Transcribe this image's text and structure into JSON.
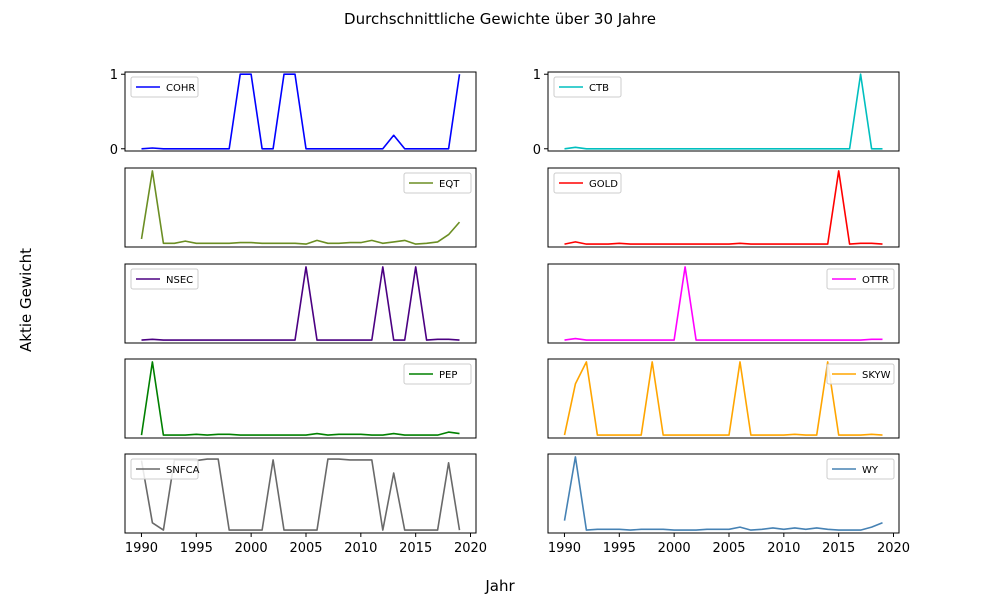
{
  "figure": {
    "title": "Durchschnittliche Gewichte über 30 Jahre",
    "xlabel": "Jahr",
    "ylabel": "Aktie Gewicht"
  },
  "chart_data": [
    {
      "type": "line",
      "series": [
        {
          "name": "COHR",
          "color": "#0000ff",
          "values": [
            0,
            0.01,
            0,
            0,
            0,
            0,
            0,
            0,
            0,
            1,
            1,
            0,
            0,
            1,
            1,
            0,
            0,
            0,
            0,
            0,
            0,
            0,
            0,
            0.18,
            0,
            0,
            0,
            0,
            0,
            1
          ]
        }
      ],
      "x_start": 1990,
      "x_end": 2019,
      "xlim": [
        1988.5,
        2020.5
      ],
      "ylim": [
        -0.03,
        1.03
      ],
      "yticks": [
        0,
        1
      ],
      "show_xticks": false,
      "legend": "top-left"
    },
    {
      "type": "line",
      "series": [
        {
          "name": "CTB",
          "color": "#00bfbf",
          "values": [
            0,
            0.02,
            0,
            0,
            0,
            0,
            0,
            0,
            0,
            0,
            0,
            0,
            0,
            0,
            0,
            0,
            0,
            0,
            0,
            0,
            0,
            0,
            0,
            0,
            0,
            0,
            0,
            1,
            0,
            0
          ]
        }
      ],
      "x_start": 1990,
      "x_end": 2019,
      "xlim": [
        1988.5,
        2020.5
      ],
      "ylim": [
        -0.03,
        1.03
      ],
      "yticks": [
        0,
        1
      ],
      "show_xticks": false,
      "legend": "top-left"
    },
    {
      "type": "line",
      "series": [
        {
          "name": "EQT",
          "color": "#6b8e23",
          "values": [
            0.07,
            1,
            0.01,
            0.01,
            0.04,
            0.01,
            0.01,
            0.01,
            0.01,
            0.02,
            0.02,
            0.01,
            0.01,
            0.01,
            0.01,
            0,
            0.05,
            0.01,
            0.01,
            0.02,
            0.02,
            0.05,
            0.01,
            0.03,
            0.05,
            0,
            0.01,
            0.03,
            0.13,
            0.3
          ]
        }
      ],
      "x_start": 1990,
      "x_end": 2019,
      "xlim": [
        1988.5,
        2020.5
      ],
      "ylim": [
        -0.04,
        1.04
      ],
      "yticks": [],
      "show_xticks": false,
      "legend": "top-right"
    },
    {
      "type": "line",
      "series": [
        {
          "name": "GOLD",
          "color": "#ff0000",
          "values": [
            0,
            0.03,
            0,
            0,
            0,
            0.01,
            0,
            0,
            0,
            0,
            0,
            0,
            0,
            0,
            0,
            0,
            0.01,
            0,
            0,
            0,
            0,
            0,
            0,
            0,
            0,
            1,
            0,
            0.01,
            0.01,
            0
          ]
        }
      ],
      "x_start": 1990,
      "x_end": 2019,
      "xlim": [
        1988.5,
        2020.5
      ],
      "ylim": [
        -0.04,
        1.04
      ],
      "yticks": [],
      "show_xticks": false,
      "legend": "top-left"
    },
    {
      "type": "line",
      "series": [
        {
          "name": "NSEC",
          "color": "#4b0082",
          "values": [
            0,
            0.01,
            0,
            0,
            0,
            0,
            0,
            0,
            0,
            0,
            0,
            0,
            0,
            0,
            0,
            1,
            0,
            0,
            0,
            0,
            0,
            0,
            1,
            0,
            0,
            1,
            0,
            0.01,
            0.01,
            0
          ]
        }
      ],
      "x_start": 1990,
      "x_end": 2019,
      "xlim": [
        1988.5,
        2020.5
      ],
      "ylim": [
        -0.04,
        1.04
      ],
      "yticks": [],
      "show_xticks": false,
      "legend": "top-left"
    },
    {
      "type": "line",
      "series": [
        {
          "name": "OTTR",
          "color": "#ff00ff",
          "values": [
            0,
            0.02,
            0,
            0,
            0,
            0,
            0,
            0,
            0,
            0,
            0,
            1,
            0,
            0,
            0,
            0,
            0,
            0,
            0,
            0,
            0,
            0,
            0,
            0,
            0,
            0,
            0,
            0,
            0.01,
            0.01
          ]
        }
      ],
      "x_start": 1990,
      "x_end": 2019,
      "xlim": [
        1988.5,
        2020.5
      ],
      "ylim": [
        -0.04,
        1.04
      ],
      "yticks": [],
      "show_xticks": false,
      "legend": "top-right"
    },
    {
      "type": "line",
      "series": [
        {
          "name": "PEP",
          "color": "#008000",
          "values": [
            0,
            1,
            0,
            0,
            0,
            0.01,
            0,
            0.01,
            0.01,
            0,
            0,
            0,
            0,
            0,
            0,
            0,
            0.02,
            0,
            0.01,
            0.01,
            0.01,
            0,
            0,
            0.02,
            0,
            0,
            0,
            0,
            0.04,
            0.02
          ]
        }
      ],
      "x_start": 1990,
      "x_end": 2019,
      "xlim": [
        1988.5,
        2020.5
      ],
      "ylim": [
        -0.04,
        1.04
      ],
      "yticks": [],
      "show_xticks": false,
      "legend": "top-right"
    },
    {
      "type": "line",
      "series": [
        {
          "name": "SKYW",
          "color": "#ffa500",
          "values": [
            0,
            0.7,
            1,
            0,
            0,
            0,
            0,
            0,
            1,
            0,
            0,
            0,
            0,
            0,
            0,
            0,
            1,
            0,
            0,
            0,
            0,
            0.01,
            0,
            0,
            1,
            0,
            0,
            0,
            0.01,
            0
          ]
        }
      ],
      "x_start": 1990,
      "x_end": 2019,
      "xlim": [
        1988.5,
        2020.5
      ],
      "ylim": [
        -0.04,
        1.04
      ],
      "yticks": [],
      "show_xticks": false,
      "legend": "top-right"
    },
    {
      "type": "line",
      "series": [
        {
          "name": "SNFCA",
          "color": "#696969",
          "values": [
            0.95,
            0.1,
            0,
            0.96,
            0.96,
            0.95,
            0.97,
            0.97,
            0,
            0,
            0,
            0,
            0.96,
            0,
            0,
            0,
            0,
            0.97,
            0.97,
            0.96,
            0.96,
            0.96,
            0,
            0.78,
            0,
            0,
            0,
            0,
            0.92,
            0
          ]
        }
      ],
      "x_start": 1990,
      "x_end": 2019,
      "xlim": [
        1988.5,
        2020.5
      ],
      "ylim": [
        -0.04,
        1.04
      ],
      "yticks": [],
      "show_xticks": true,
      "xticks": [
        1990,
        1995,
        2000,
        2005,
        2010,
        2015,
        2020
      ],
      "legend": "top-left"
    },
    {
      "type": "line",
      "series": [
        {
          "name": "WY",
          "color": "#4682b4",
          "values": [
            0.13,
            1,
            0,
            0.01,
            0.01,
            0.01,
            0,
            0.01,
            0.01,
            0.01,
            0,
            0,
            0,
            0.01,
            0.01,
            0.01,
            0.04,
            0,
            0.01,
            0.03,
            0.01,
            0.03,
            0.01,
            0.03,
            0.01,
            0,
            0,
            0,
            0.04,
            0.1
          ]
        }
      ],
      "x_start": 1990,
      "x_end": 2019,
      "xlim": [
        1988.5,
        2020.5
      ],
      "ylim": [
        -0.04,
        1.04
      ],
      "yticks": [],
      "show_xticks": true,
      "xticks": [
        1990,
        1995,
        2000,
        2005,
        2010,
        2015,
        2020
      ],
      "legend": "top-right"
    }
  ]
}
